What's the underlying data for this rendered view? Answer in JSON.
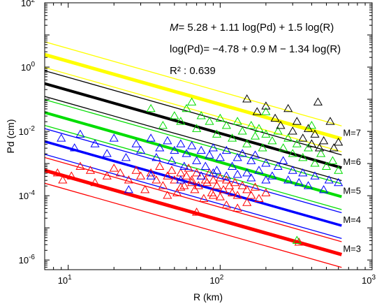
{
  "chart_data": {
    "type": "scatter",
    "title": "",
    "xlabel": "R (km)",
    "ylabel": "Pd (cm)",
    "xscale": "log",
    "yscale": "log",
    "xlim": [
      7,
      1000
    ],
    "ylim": [
      5e-07,
      100
    ],
    "grid": false,
    "x_tick_labels": [
      {
        "base": "10",
        "exp": "1",
        "value": 10
      },
      {
        "base": "10",
        "exp": "2",
        "value": 100
      },
      {
        "base": "10",
        "exp": "3",
        "value": 1000
      }
    ],
    "y_tick_labels": [
      {
        "base": "10",
        "exp": "-6",
        "value": 1e-06
      },
      {
        "base": "10",
        "exp": "-4",
        "value": 0.0001
      },
      {
        "base": "10",
        "exp": "-2",
        "value": 0.01
      },
      {
        "base": "10",
        "exp": "0",
        "value": 1
      },
      {
        "base": "10",
        "exp": "2",
        "value": 100
      }
    ],
    "annotations": [
      {
        "prefix": "M",
        "text": "= 5.28 + 1.11 log(Pd) + 1.5 log(R)"
      },
      {
        "prefix": "",
        "text": "log(Pd)= −4.78 + 0.9 M − 1.34 log(R)"
      },
      {
        "prefix": "",
        "text": "R² : 0.639"
      }
    ],
    "model": {
      "intercept": -4.78,
      "m_coef": 0.9,
      "r_coef": -1.34,
      "x_range": [
        7,
        630
      ],
      "offset_log": 0.4
    },
    "series": [
      {
        "name": "M=3",
        "label": "M=3",
        "magnitude": 3,
        "color": "#ff0000",
        "thick": 5,
        "points": [
          [
            8.5,
            0.0005
          ],
          [
            9.2,
            0.0003
          ],
          [
            10.5,
            0.0004
          ],
          [
            12,
            0.0008
          ],
          [
            14,
            0.0006
          ],
          [
            15,
            0.00025
          ],
          [
            18,
            0.0004
          ],
          [
            20,
            0.0007
          ],
          [
            22,
            0.0005
          ],
          [
            25,
            0.0003
          ],
          [
            28,
            0.0006
          ],
          [
            30,
            0.0004
          ],
          [
            32,
            0.00015
          ],
          [
            35,
            0.0005
          ],
          [
            38,
            0.0003
          ],
          [
            40,
            0.0008
          ],
          [
            42,
            0.0002
          ],
          [
            45,
            0.0004
          ],
          [
            48,
            0.0006
          ],
          [
            50,
            0.0003
          ],
          [
            52,
            0.00012
          ],
          [
            55,
            0.0005
          ],
          [
            58,
            0.0002
          ],
          [
            60,
            0.0004
          ],
          [
            62,
            0.0007
          ],
          [
            65,
            0.0003
          ],
          [
            68,
            0.00015
          ],
          [
            70,
            0.0005
          ],
          [
            72,
            0.0002
          ],
          [
            75,
            0.0004
          ],
          [
            78,
            8e-05
          ],
          [
            80,
            0.0003
          ],
          [
            82,
            0.00025
          ],
          [
            85,
            0.0005
          ],
          [
            88,
            0.00012
          ],
          [
            90,
            0.0003
          ],
          [
            95,
            0.0002
          ],
          [
            100,
            0.00035
          ],
          [
            105,
            0.00015
          ],
          [
            110,
            0.0003
          ],
          [
            115,
            0.0002
          ],
          [
            120,
            0.00012
          ],
          [
            125,
            0.00025
          ],
          [
            130,
            0.0001
          ],
          [
            140,
            0.0002
          ],
          [
            150,
            0.00015
          ],
          [
            160,
            0.0001
          ],
          [
            170,
            0.00018
          ],
          [
            180,
            8e-05
          ],
          [
            200,
            0.00012
          ],
          [
            70,
            3e-05
          ],
          [
            90,
            0.0001
          ],
          [
            130,
            4e-05
          ],
          [
            45,
            0.0001
          ],
          [
            55,
            0.00018
          ],
          [
            65,
            0.00025
          ],
          [
            100,
            9e-05
          ],
          [
            150,
            6e-05
          ],
          [
            110,
            5e-05
          ],
          [
            330,
            3.5e-06
          ]
        ]
      },
      {
        "name": "M=4",
        "label": "M=4",
        "magnitude": 4,
        "color": "#0000ff",
        "thick": 3.5,
        "points": [
          [
            9,
            0.006
          ],
          [
            11,
            0.003
          ],
          [
            12,
            0.008
          ],
          [
            15,
            0.004
          ],
          [
            18,
            0.002
          ],
          [
            20,
            0.006
          ],
          [
            24,
            0.0015
          ],
          [
            28,
            0.004
          ],
          [
            30,
            0.0025
          ],
          [
            35,
            0.006
          ],
          [
            38,
            0.0015
          ],
          [
            40,
            0.003
          ],
          [
            45,
            0.005
          ],
          [
            48,
            0.0012
          ],
          [
            50,
            0.0025
          ],
          [
            55,
            0.004
          ],
          [
            58,
            0.0008
          ],
          [
            60,
            0.002
          ],
          [
            65,
            0.0035
          ],
          [
            70,
            0.0012
          ],
          [
            75,
            0.0025
          ],
          [
            80,
            0.0008
          ],
          [
            85,
            0.0018
          ],
          [
            90,
            0.003
          ],
          [
            95,
            0.0006
          ],
          [
            100,
            0.0015
          ],
          [
            110,
            0.0025
          ],
          [
            120,
            0.0008
          ],
          [
            130,
            0.0015
          ],
          [
            140,
            0.002
          ],
          [
            150,
            0.0005
          ],
          [
            160,
            0.0012
          ],
          [
            170,
            0.0018
          ],
          [
            180,
            0.0006
          ],
          [
            200,
            0.001
          ],
          [
            220,
            0.0004
          ],
          [
            240,
            0.0008
          ],
          [
            260,
            0.0012
          ],
          [
            280,
            0.0003
          ],
          [
            300,
            0.0006
          ],
          [
            330,
            0.00025
          ],
          [
            350,
            0.0005
          ],
          [
            380,
            0.0002
          ],
          [
            420,
            0.0004
          ],
          [
            480,
            0.00015
          ],
          [
            520,
            0.0003
          ],
          [
            600,
            0.00025
          ],
          [
            25,
            0.00015
          ],
          [
            35,
            0.0004
          ],
          [
            55,
            0.0003
          ],
          [
            75,
            0.0004
          ],
          [
            110,
            0.0004
          ],
          [
            160,
            0.00035
          ],
          [
            200,
            0.0003
          ],
          [
            90,
            0.0005
          ],
          [
            130,
            0.00045
          ]
        ]
      },
      {
        "name": "M=5",
        "label": "M=5",
        "magnitude": 5,
        "color": "#00dd00",
        "thick": 4,
        "points": [
          [
            35,
            0.05
          ],
          [
            42,
            0.015
          ],
          [
            50,
            0.03
          ],
          [
            55,
            0.02
          ],
          [
            60,
            0.05
          ],
          [
            70,
            0.012
          ],
          [
            75,
            0.03
          ],
          [
            85,
            0.02
          ],
          [
            95,
            0.008
          ],
          [
            100,
            0.025
          ],
          [
            110,
            0.015
          ],
          [
            120,
            0.006
          ],
          [
            130,
            0.02
          ],
          [
            140,
            0.01
          ],
          [
            150,
            0.004
          ],
          [
            160,
            0.015
          ],
          [
            170,
            0.007
          ],
          [
            180,
            0.012
          ],
          [
            190,
            0.003
          ],
          [
            200,
            0.008
          ],
          [
            220,
            0.005
          ],
          [
            240,
            0.01
          ],
          [
            260,
            0.003
          ],
          [
            280,
            0.006
          ],
          [
            300,
            0.002
          ],
          [
            320,
            0.004
          ],
          [
            350,
            0.0015
          ],
          [
            380,
            0.003
          ],
          [
            420,
            0.001
          ],
          [
            460,
            0.002
          ],
          [
            500,
            0.0008
          ],
          [
            550,
            0.0012
          ],
          [
            600,
            0.0006
          ],
          [
            320,
            4e-06
          ],
          [
            65,
            0.08
          ],
          [
            200,
            0.04
          ],
          [
            400,
            0.015
          ]
        ]
      },
      {
        "name": "M=6",
        "label": "M=6",
        "magnitude": 6,
        "color": "#000000",
        "thick": 4,
        "points": [
          [
            150,
            0.1
          ],
          [
            175,
            0.04
          ],
          [
            200,
            0.06
          ],
          [
            230,
            0.025
          ],
          [
            250,
            0.015
          ],
          [
            280,
            0.05
          ],
          [
            300,
            0.01
          ],
          [
            320,
            0.02
          ],
          [
            350,
            0.006
          ],
          [
            380,
            0.012
          ],
          [
            400,
            0.004
          ],
          [
            420,
            0.008
          ],
          [
            450,
            0.003
          ],
          [
            480,
            0.005
          ],
          [
            530,
            0.02
          ],
          [
            560,
            0.003
          ],
          [
            600,
            0.0045
          ],
          [
            440,
            0.08
          ]
        ]
      },
      {
        "name": "M=7",
        "label": "M=7",
        "magnitude": 7,
        "color": "#ffff00",
        "thick": 5,
        "points": []
      }
    ]
  }
}
